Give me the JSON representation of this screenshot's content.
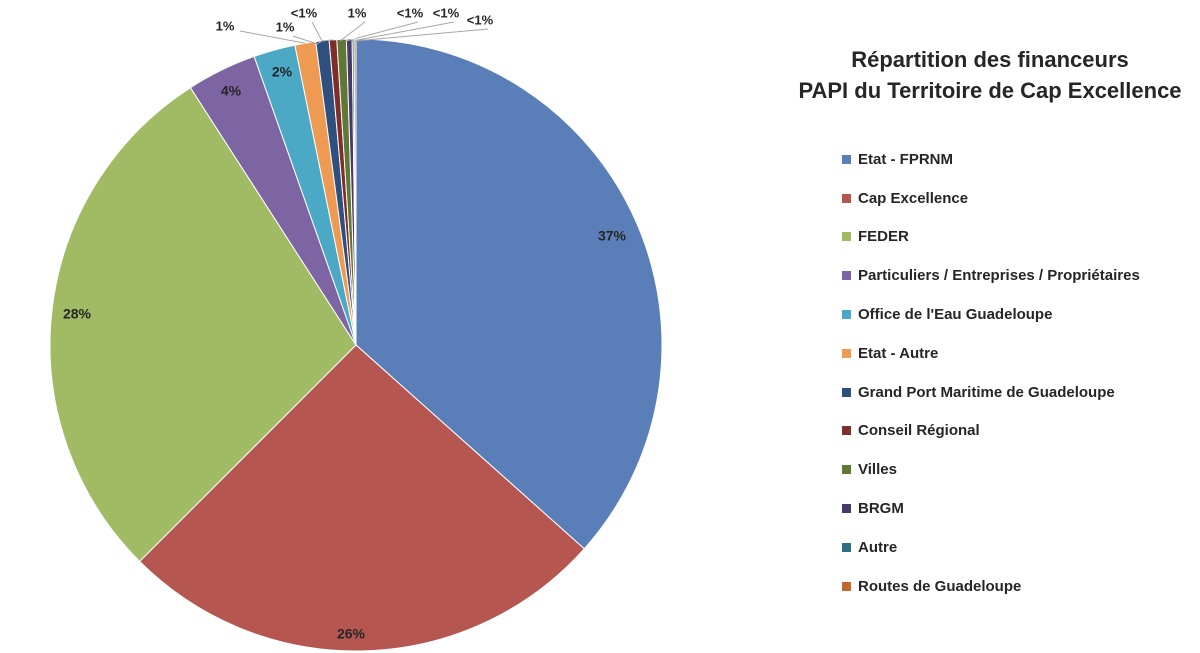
{
  "chart_data": {
    "type": "pie",
    "title_lines": [
      "Répartition des financeurs",
      "PAPI du Territoire de Cap Excellence"
    ],
    "legend_position": "right",
    "slices": [
      {
        "label": "Etat - FPRNM",
        "value": 36.6,
        "display": "37%",
        "color": "#5a7fb8"
      },
      {
        "label": "Cap Excellence",
        "value": 25.9,
        "display": "26%",
        "color": "#b55651"
      },
      {
        "label": "FEDER",
        "value": 28.4,
        "display": "28%",
        "color": "#a0bb64"
      },
      {
        "label": "Particuliers / Entreprises / Propriétaires",
        "value": 3.7,
        "display": "4%",
        "color": "#7d64a2"
      },
      {
        "label": "Office de l'Eau Guadeloupe",
        "value": 2.2,
        "display": "2%",
        "color": "#4ba9c6"
      },
      {
        "label": "Etat - Autre",
        "value": 1.1,
        "display": "1%",
        "color": "#ef9a52"
      },
      {
        "label": "Grand Port Maritime de Guadeloupe",
        "value": 0.7,
        "display": "1%",
        "color": "#2f4f7f"
      },
      {
        "label": "Conseil Régional",
        "value": 0.4,
        "display": "<1%",
        "color": "#7e2f2c"
      },
      {
        "label": "Villes",
        "value": 0.5,
        "display": "1%",
        "color": "#5f7836"
      },
      {
        "label": "BRGM",
        "value": 0.3,
        "display": "<1%",
        "color": "#473a6b"
      },
      {
        "label": "Autre",
        "value": 0.1,
        "display": "<1%",
        "color": "#2d7085"
      },
      {
        "label": "Routes de Guadeloupe",
        "value": 0.1,
        "display": "<1%",
        "color": "#c0692a"
      }
    ]
  }
}
